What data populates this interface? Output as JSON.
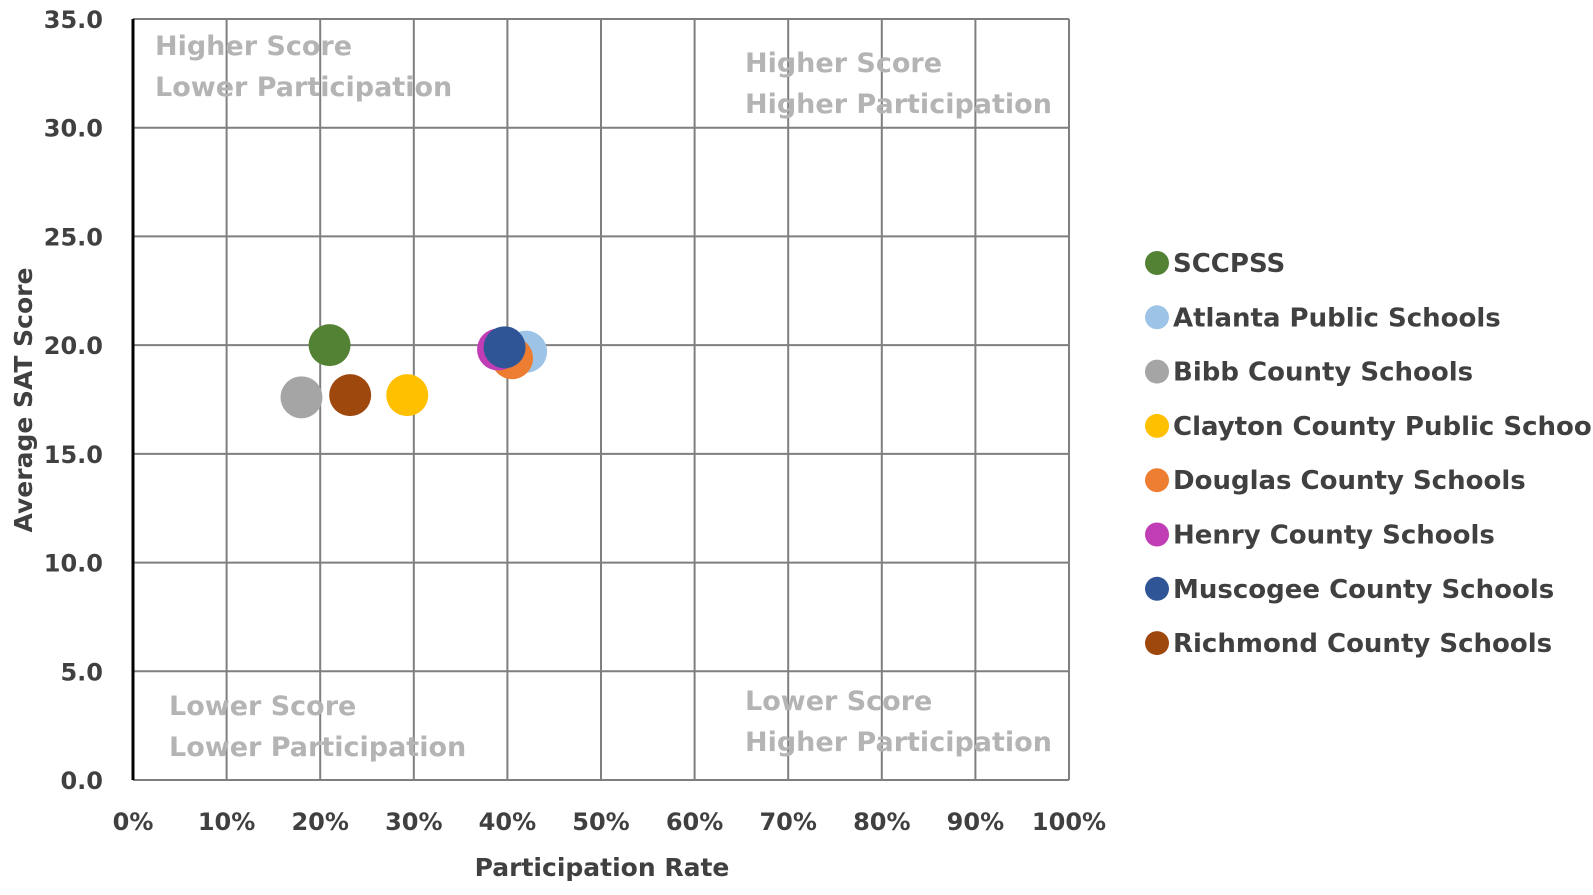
{
  "chart_data": {
    "type": "scatter",
    "xlabel": "Participation Rate",
    "ylabel": "Average SAT Score",
    "xlim": [
      0,
      1
    ],
    "ylim": [
      0,
      35
    ],
    "x_ticks": [
      "0%",
      "10%",
      "20%",
      "30%",
      "40%",
      "50%",
      "60%",
      "70%",
      "80%",
      "90%",
      "100%"
    ],
    "y_ticks": [
      "0.0",
      "5.0",
      "10.0",
      "15.0",
      "20.0",
      "25.0",
      "30.0",
      "35.0"
    ],
    "grid": true,
    "legend_position": "right",
    "quadrant_labels": [
      {
        "id": "tl",
        "lines": [
          "Higher Score",
          "Lower Participation"
        ]
      },
      {
        "id": "tr",
        "lines": [
          "Higher Score",
          "Higher Participation"
        ]
      },
      {
        "id": "bl",
        "lines": [
          "Lower Score",
          "Lower Participation"
        ]
      },
      {
        "id": "br",
        "lines": [
          "Lower Score",
          "Higher Participation"
        ]
      }
    ],
    "series": [
      {
        "name": "SCCPSS",
        "color": "#548235",
        "x": 0.21,
        "y": 20.0
      },
      {
        "name": "Atlanta Public Schools",
        "color": "#9dc3e6",
        "x": 0.42,
        "y": 19.7
      },
      {
        "name": "Bibb County Schools",
        "color": "#a5a5a5",
        "x": 0.18,
        "y": 17.6
      },
      {
        "name": "Clayton County Public Schools",
        "color": "#ffc000",
        "x": 0.293,
        "y": 17.7
      },
      {
        "name": "Douglas County Schools",
        "color": "#ed7d31",
        "x": 0.405,
        "y": 19.4
      },
      {
        "name": "Henry County Schools",
        "color": "#c13db5",
        "x": 0.39,
        "y": 19.8
      },
      {
        "name": "Muscogee County Schools",
        "color": "#2f5597",
        "x": 0.397,
        "y": 19.9
      },
      {
        "name": "Richmond County Schools",
        "color": "#9e480e",
        "x": 0.232,
        "y": 17.7
      }
    ]
  }
}
